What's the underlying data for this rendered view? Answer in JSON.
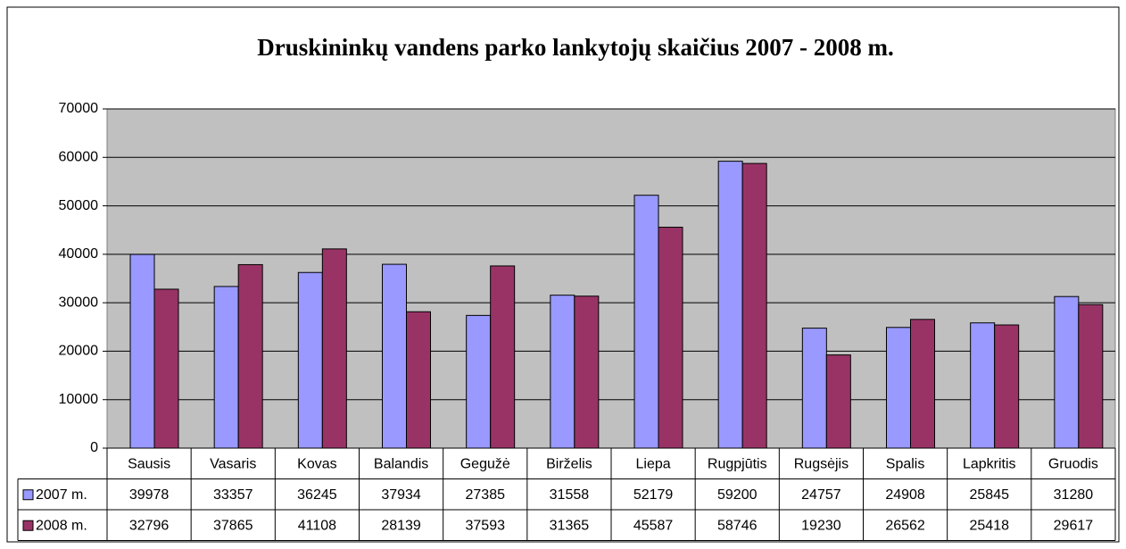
{
  "chart_data": {
    "type": "bar",
    "title": "Druskininkų vandens parko lankytojų skaičius 2007 - 2008 m.",
    "categories": [
      "Sausis",
      "Vasaris",
      "Kovas",
      "Balandis",
      "Gegužė",
      "Birželis",
      "Liepa",
      "Rugpjūtis",
      "Rugsėjis",
      "Spalis",
      "Lapkritis",
      "Gruodis"
    ],
    "series": [
      {
        "name": "2007 m.",
        "color": "#9999ff",
        "values": [
          39978,
          33357,
          36245,
          37934,
          27385,
          31558,
          52179,
          59200,
          24757,
          24908,
          25845,
          31280
        ]
      },
      {
        "name": "2008 m.",
        "color": "#993366",
        "values": [
          32796,
          37865,
          41108,
          28139,
          37593,
          31365,
          45587,
          58746,
          19230,
          26562,
          25418,
          29617
        ]
      }
    ],
    "ylim": [
      0,
      70000
    ],
    "yticks": [
      0,
      10000,
      20000,
      30000,
      40000,
      50000,
      60000,
      70000
    ],
    "grid": true
  }
}
